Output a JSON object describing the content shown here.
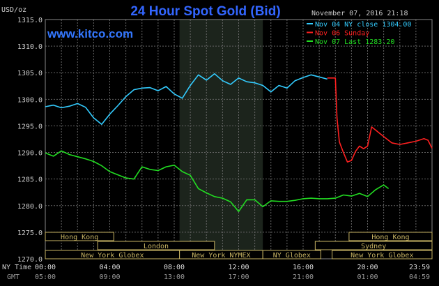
{
  "chart_data": {
    "type": "line",
    "title": "24 Hour Spot Gold (Bid)",
    "ylabel": "USD/oz",
    "watermark": "www.kitco.com",
    "timestamp": "November 07, 2016 21:18",
    "ylim": [
      1270,
      1315
    ],
    "yticks": [
      "1315.0",
      "1310.0",
      "1305.0",
      "1300.0",
      "1295.0",
      "1290.0",
      "1285.0",
      "1280.0",
      "1275.0",
      "1270.0"
    ],
    "xlim": [
      0,
      24
    ],
    "x_row_labels": {
      "ny_time": "NY Time",
      "gmt": "GMT"
    },
    "x_ticks_ny": [
      {
        "x": 0,
        "label": "00:00"
      },
      {
        "x": 4,
        "label": "04:00"
      },
      {
        "x": 8,
        "label": "08:00"
      },
      {
        "x": 12,
        "label": "12:00"
      },
      {
        "x": 16,
        "label": "16:00"
      },
      {
        "x": 20,
        "label": "20:00"
      },
      {
        "x": 23.98,
        "label": "23:59"
      }
    ],
    "x_ticks_gmt": [
      {
        "x": 0,
        "label": "05:00"
      },
      {
        "x": 4,
        "label": "09:00"
      },
      {
        "x": 8,
        "label": "13:00"
      },
      {
        "x": 12,
        "label": "17:00"
      },
      {
        "x": 16,
        "label": "21:00"
      },
      {
        "x": 20,
        "label": "01:00"
      },
      {
        "x": 23.98,
        "label": "04:59"
      }
    ],
    "shaded_session": {
      "x_start": 8.33,
      "x_end": 13.5
    },
    "grid": true,
    "legend_position": "top-right",
    "series": [
      {
        "name": "Nov 04 NY close 1304.00",
        "color": "#33ccff",
        "x": [
          0,
          0.5,
          1,
          1.5,
          2,
          2.5,
          3,
          3.5,
          4,
          4.5,
          5,
          5.5,
          6,
          6.5,
          7,
          7.5,
          8,
          8.5,
          9,
          9.5,
          10,
          10.5,
          11,
          11.5,
          12,
          12.5,
          13,
          13.5,
          14,
          14.5,
          15,
          15.5,
          16,
          16.5,
          17,
          17.5
        ],
        "values": [
          1298.6,
          1298.9,
          1298.4,
          1298.7,
          1299.2,
          1298.5,
          1296.5,
          1295.3,
          1297.2,
          1298.8,
          1300.5,
          1301.8,
          1302.1,
          1302.2,
          1301.6,
          1302.4,
          1301.0,
          1300.2,
          1302.6,
          1304.6,
          1303.6,
          1304.8,
          1303.5,
          1302.8,
          1304.0,
          1303.3,
          1303.1,
          1302.6,
          1301.4,
          1302.6,
          1302.1,
          1303.5,
          1304.1,
          1304.6,
          1304.2,
          1303.8
        ]
      },
      {
        "name": "Nov 06 Sunday",
        "color": "#ff2020",
        "x": [
          17.5,
          18,
          18.1,
          18.25,
          18.5,
          18.75,
          19,
          19.25,
          19.5,
          19.75,
          20,
          20.25,
          20.5,
          20.75,
          21,
          21.25,
          21.5,
          22,
          22.5,
          23,
          23.5,
          23.75,
          24
        ],
        "values": [
          1304.0,
          1304.0,
          1296.5,
          1292.0,
          1290.0,
          1288.2,
          1288.5,
          1290.2,
          1291.2,
          1290.7,
          1291.2,
          1294.8,
          1294.2,
          1293.6,
          1293.0,
          1292.4,
          1291.8,
          1291.5,
          1291.8,
          1292.1,
          1292.6,
          1292.3,
          1290.8
        ]
      },
      {
        "name": "Nov 07 Last 1283.20",
        "color": "#22dd22",
        "x": [
          0,
          0.5,
          1,
          1.5,
          2,
          2.5,
          3,
          3.5,
          4,
          4.5,
          5,
          5.5,
          6,
          6.5,
          7,
          7.5,
          8,
          8.5,
          9,
          9.5,
          10,
          10.5,
          11,
          11.5,
          12,
          12.5,
          13,
          13.5,
          14,
          14.5,
          15,
          15.5,
          16,
          16.5,
          17,
          17.5,
          18,
          18.5,
          19,
          19.5,
          20,
          20.5,
          21,
          21.3
        ],
        "values": [
          1289.9,
          1289.3,
          1290.3,
          1289.6,
          1289.2,
          1288.8,
          1288.3,
          1287.5,
          1286.4,
          1285.8,
          1285.2,
          1285.0,
          1287.3,
          1286.8,
          1286.6,
          1287.3,
          1287.6,
          1286.4,
          1285.7,
          1283.2,
          1282.4,
          1281.7,
          1281.4,
          1280.7,
          1278.9,
          1281.1,
          1281.1,
          1279.8,
          1280.9,
          1280.8,
          1280.8,
          1281.0,
          1281.3,
          1281.4,
          1281.3,
          1281.3,
          1281.4,
          1282.0,
          1281.8,
          1282.3,
          1281.7,
          1283.0,
          1283.9,
          1283.2
        ]
      }
    ],
    "sessions": [
      {
        "label": "Hong Kong",
        "row": 1,
        "start": 0,
        "end": 4.25
      },
      {
        "label": "Hong Kong",
        "row": 1,
        "start": 18.85,
        "end": 24
      },
      {
        "label": "London",
        "row": 2,
        "start": 3.25,
        "end": 10.5
      },
      {
        "label": "Sydney",
        "row": 2,
        "start": 16.75,
        "end": 24
      },
      {
        "label": "New York Globex",
        "row": 3,
        "start": 0,
        "end": 8.33
      },
      {
        "label": "New York NYMEX",
        "row": 3,
        "start": 8.33,
        "end": 13.5
      },
      {
        "label": "NY Globex",
        "row": 3,
        "start": 13.5,
        "end": 17.1
      },
      {
        "label": "New York Globex",
        "row": 3,
        "start": 17.8,
        "end": 24
      }
    ]
  }
}
